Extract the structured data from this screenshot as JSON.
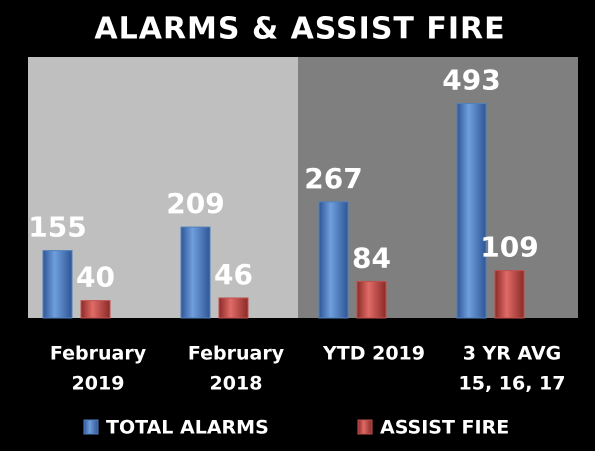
{
  "chart_data": {
    "type": "bar",
    "title": "ALARMS & ASSIST FIRE",
    "categories": [
      [
        "February",
        "2019"
      ],
      [
        "February",
        "2018"
      ],
      [
        "YTD 2019"
      ],
      [
        "3 YR AVG",
        "15, 16, 17"
      ]
    ],
    "series": [
      {
        "name": "TOTAL ALARMS",
        "color": "#4f81bd",
        "values": [
          155,
          209,
          267,
          493
        ]
      },
      {
        "name": "ASSIST FIRE",
        "color": "#c0504d",
        "values": [
          40,
          46,
          84,
          109
        ]
      }
    ],
    "ylim": [
      0,
      600
    ],
    "legend": "bottom"
  }
}
